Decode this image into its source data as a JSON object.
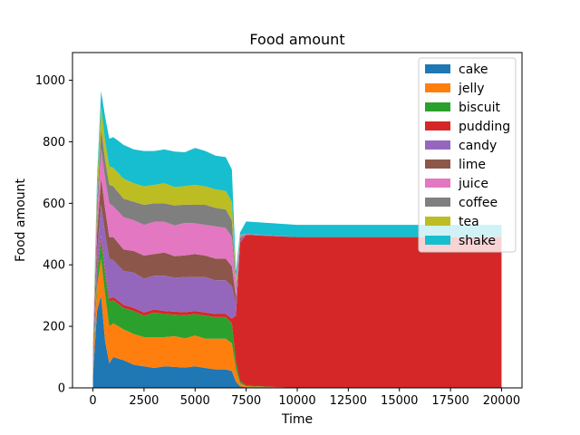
{
  "chart_data": {
    "type": "area",
    "stacked": true,
    "title": "Food amount",
    "xlabel": "Time",
    "ylabel": "Food amount",
    "xlim": [
      -1000,
      21000
    ],
    "ylim": [
      0,
      1090
    ],
    "x_ticks": [
      0,
      2500,
      5000,
      7500,
      10000,
      12500,
      15000,
      17500,
      20000
    ],
    "y_ticks": [
      0,
      200,
      400,
      600,
      800,
      1000
    ],
    "x_tick_labels": [
      "0",
      "2500",
      "5000",
      "7500",
      "10000",
      "12500",
      "15000",
      "17500",
      "20000"
    ],
    "y_tick_labels": [
      "0",
      "200",
      "400",
      "600",
      "800",
      "1000"
    ],
    "legend_position": "top-right",
    "x": [
      0,
      200,
      400,
      600,
      800,
      1000,
      1500,
      2000,
      2500,
      3000,
      3500,
      4000,
      4500,
      5000,
      5500,
      6000,
      6500,
      6800,
      7000,
      7200,
      7500,
      10000,
      15000,
      20000
    ],
    "series": [
      {
        "name": "cake",
        "color": "#1f77b4",
        "values": [
          40,
          250,
          300,
          150,
          80,
          100,
          90,
          75,
          70,
          65,
          70,
          68,
          66,
          70,
          65,
          60,
          60,
          55,
          20,
          5,
          2,
          0,
          0,
          0
        ]
      },
      {
        "name": "jelly",
        "color": "#ff7f0e",
        "values": [
          20,
          80,
          120,
          150,
          120,
          110,
          100,
          100,
          95,
          100,
          95,
          100,
          95,
          100,
          95,
          100,
          100,
          90,
          40,
          10,
          3,
          0,
          0,
          0
        ]
      },
      {
        "name": "biscuit",
        "color": "#2ca02c",
        "values": [
          10,
          40,
          60,
          70,
          80,
          75,
          70,
          75,
          70,
          80,
          75,
          70,
          75,
          70,
          75,
          70,
          70,
          65,
          25,
          8,
          2,
          0,
          0,
          0
        ]
      },
      {
        "name": "pudding",
        "color": "#d62728",
        "values": [
          5,
          10,
          15,
          10,
          10,
          10,
          10,
          10,
          10,
          10,
          10,
          10,
          10,
          10,
          10,
          10,
          10,
          15,
          150,
          450,
          490,
          490,
          490,
          490
        ]
      },
      {
        "name": "candy",
        "color": "#9467bd",
        "values": [
          20,
          60,
          100,
          120,
          130,
          120,
          110,
          115,
          110,
          110,
          115,
          110,
          115,
          110,
          115,
          110,
          110,
          105,
          40,
          8,
          2,
          0,
          0,
          0
        ]
      },
      {
        "name": "lime",
        "color": "#8c564b",
        "values": [
          15,
          60,
          90,
          80,
          70,
          75,
          70,
          70,
          75,
          70,
          75,
          70,
          70,
          75,
          70,
          70,
          70,
          65,
          20,
          5,
          1,
          0,
          0,
          0
        ]
      },
      {
        "name": "juice",
        "color": "#e377c2",
        "values": [
          10,
          60,
          90,
          100,
          110,
          100,
          105,
          100,
          100,
          105,
          100,
          100,
          105,
          100,
          100,
          105,
          100,
          95,
          30,
          5,
          1,
          0,
          0,
          0
        ]
      },
      {
        "name": "coffee",
        "color": "#7f7f7f",
        "values": [
          5,
          40,
          70,
          60,
          60,
          65,
          60,
          60,
          65,
          60,
          60,
          65,
          60,
          60,
          65,
          60,
          60,
          55,
          15,
          3,
          0,
          0,
          0,
          0
        ]
      },
      {
        "name": "tea",
        "color": "#bcbd22",
        "values": [
          5,
          50,
          70,
          60,
          60,
          60,
          65,
          60,
          60,
          60,
          65,
          60,
          60,
          65,
          60,
          60,
          60,
          60,
          15,
          3,
          0,
          0,
          0,
          0
        ]
      },
      {
        "name": "shake",
        "color": "#17becf",
        "values": [
          5,
          30,
          50,
          80,
          90,
          100,
          110,
          110,
          115,
          110,
          110,
          115,
          110,
          120,
          115,
          110,
          110,
          105,
          25,
          8,
          40,
          40,
          40,
          40
        ]
      }
    ]
  }
}
